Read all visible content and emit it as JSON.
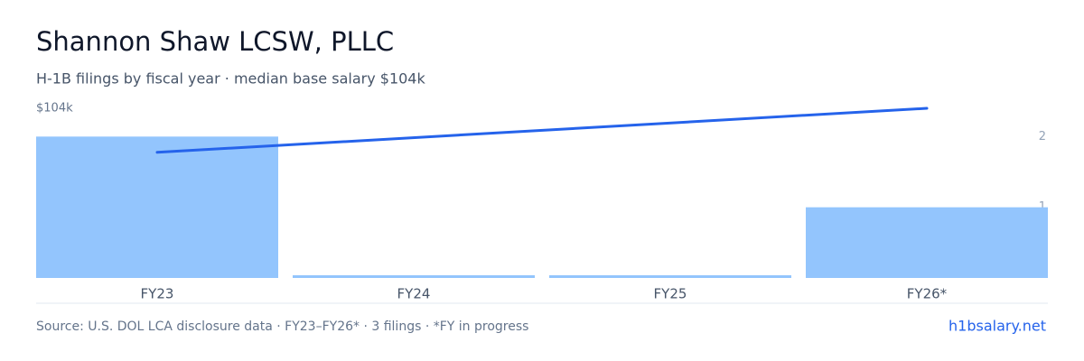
{
  "chart_data": {
    "type": "bar",
    "title": "Shannon Shaw LCSW, PLLC",
    "subtitle": "H-1B filings by fiscal year · median base salary $104k",
    "categories": [
      "FY23",
      "FY24",
      "FY25",
      "FY26*"
    ],
    "values": [
      2,
      0,
      0,
      1
    ],
    "color": "#93c5fd",
    "axis": "y2",
    "y2lim": [
      0,
      2.4
    ],
    "y2ticks": [
      1,
      2
    ],
    "ylim": [
      0,
      104000
    ],
    "yticks": [
      {
        "value": 104000,
        "label": "$104k"
      }
    ],
    "line": {
      "categories": [
        "FY23",
        "FY26*"
      ],
      "values": [
        77000,
        104000
      ],
      "color": "#2563eb"
    },
    "source": "Source: U.S. DOL LCA disclosure data · FY23–FY26* · 3 filings · *FY in progress",
    "brand": "h1bsalary.net"
  }
}
